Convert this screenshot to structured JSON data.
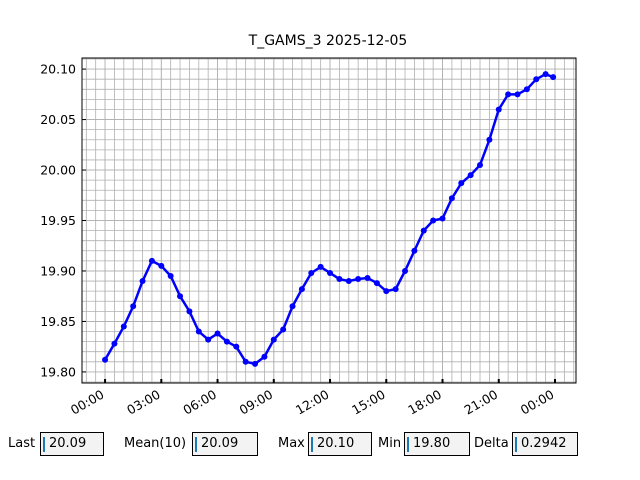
{
  "chart_data": {
    "type": "line",
    "title": "T_GAMS_3 2025-12-05",
    "x": [
      0,
      0.5,
      1,
      1.5,
      2,
      2.5,
      3,
      3.5,
      4,
      4.5,
      5,
      5.5,
      6,
      6.5,
      7,
      7.5,
      8,
      8.5,
      9,
      9.5,
      10,
      10.5,
      11,
      11.5,
      12,
      12.5,
      13,
      13.5,
      14,
      14.5,
      15,
      15.5,
      16,
      16.5,
      17,
      17.5,
      18,
      18.5,
      19,
      19.5,
      20,
      20.5,
      21,
      21.5,
      22,
      22.5,
      23,
      23.5,
      23.9
    ],
    "series": [
      {
        "color": "#0000ff",
        "values": [
          19.812,
          19.828,
          19.845,
          19.865,
          19.89,
          19.91,
          19.905,
          19.895,
          19.875,
          19.86,
          19.84,
          19.832,
          19.838,
          19.83,
          19.825,
          19.81,
          19.808,
          19.815,
          19.832,
          19.842,
          19.865,
          19.882,
          19.898,
          19.904,
          19.898,
          19.892,
          19.89,
          19.892,
          19.893,
          19.888,
          19.88,
          19.882,
          19.9,
          19.92,
          19.94,
          19.95,
          19.952,
          19.972,
          19.987,
          19.995,
          20.005,
          20.03,
          20.06,
          20.075,
          20.075,
          20.08,
          20.09,
          20.095,
          20.092
        ]
      }
    ],
    "xlim": [
      -1.23,
      25.12
    ],
    "xticks": [
      {
        "value": 0,
        "label": "00:00"
      },
      {
        "value": 3,
        "label": "03:00"
      },
      {
        "value": 6,
        "label": "06:00"
      },
      {
        "value": 9,
        "label": "09:00"
      },
      {
        "value": 12,
        "label": "12:00"
      },
      {
        "value": 15,
        "label": "15:00"
      },
      {
        "value": 18,
        "label": "18:00"
      },
      {
        "value": 21,
        "label": "21:00"
      },
      {
        "value": 24,
        "label": "00:00"
      }
    ],
    "ylim": [
      19.789,
      20.111
    ],
    "yticks": [
      {
        "value": 19.8,
        "label": "19.80"
      },
      19.85,
      {
        "value": 19.9,
        "label": "19.90"
      },
      19.95,
      {
        "value": 20,
        "label": "20.00"
      },
      20.05,
      {
        "value": 20.1,
        "label": "20.10"
      }
    ],
    "grid": true
  },
  "stats": [
    {
      "label": "Last",
      "value": "20.09"
    },
    {
      "label": "Mean(10)",
      "value": "20.09"
    },
    {
      "label": "Max",
      "value": "20.10"
    },
    {
      "label": "Min",
      "value": "19.80"
    },
    {
      "label": "Delta",
      "value": "0.2942"
    }
  ]
}
